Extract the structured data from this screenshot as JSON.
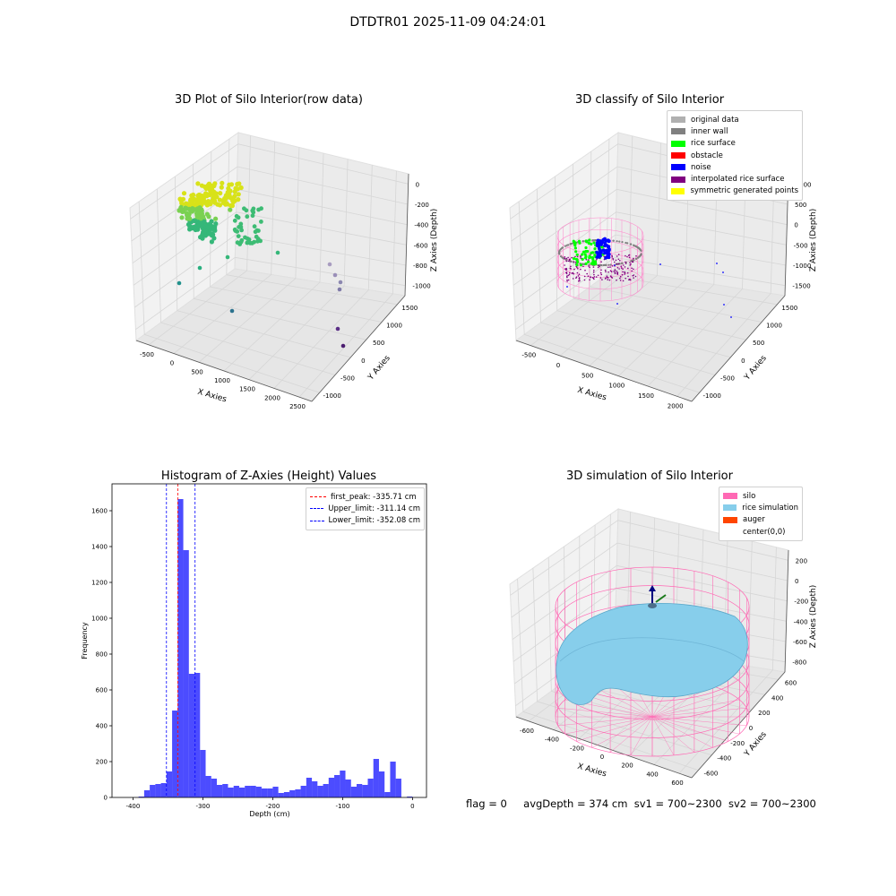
{
  "suptitle": "DTDTR01 2025-11-09 04:24:01",
  "panels": {
    "raw": {
      "title": "3D Plot of Silo Interior(row data)",
      "xlabel": "X Axies",
      "ylabel": "Y Axies",
      "zlabel": "Z Axies (Depth)",
      "xticks": [
        "-500",
        "0",
        "500",
        "1000",
        "1500",
        "2000",
        "2500"
      ],
      "yticks": [
        "-1000",
        "-500",
        "0",
        "500",
        "1000",
        "1500"
      ],
      "zticks": [
        "0",
        "-200",
        "-400",
        "-600",
        "-800",
        "-1000"
      ]
    },
    "classify": {
      "title": "3D classify of Silo Interior",
      "xlabel": "X Axies",
      "ylabel": "Y Axies",
      "zlabel": "Z Axies (Depth)",
      "xticks": [
        "-500",
        "0",
        "500",
        "1000",
        "1500",
        "2000"
      ],
      "yticks": [
        "-1000",
        "-500",
        "0",
        "500",
        "1000",
        "1500"
      ],
      "zticks": [
        "1000",
        "500",
        "0",
        "-500",
        "-1000",
        "-1500"
      ],
      "legend": [
        {
          "label": "original data",
          "color": "#b0b0b0"
        },
        {
          "label": "inner wall",
          "color": "#808080"
        },
        {
          "label": "rice surface",
          "color": "#00ff00"
        },
        {
          "label": "obstacle",
          "color": "#ff0000"
        },
        {
          "label": "noise",
          "color": "#0000ff"
        },
        {
          "label": "interpolated rice surface",
          "color": "#800080"
        },
        {
          "label": "symmetric generated points",
          "color": "#ffff00"
        }
      ]
    },
    "simulation": {
      "title": "3D simulation of Silo Interior",
      "xlabel": "X Axies",
      "ylabel": "Y Axies",
      "zlabel": "Z Axies (Depth)",
      "xticks": [
        "-600",
        "-400",
        "-200",
        "0",
        "200",
        "400",
        "600"
      ],
      "yticks": [
        "-600",
        "-400",
        "-200",
        "0",
        "200",
        "400",
        "600"
      ],
      "zticks": [
        "200",
        "0",
        "-200",
        "-400",
        "-600",
        "-800"
      ],
      "legend": [
        {
          "label": "silo",
          "color": "#ff69b4"
        },
        {
          "label": "rice simulation",
          "color": "#87ceeb"
        },
        {
          "label": "auger",
          "color": "#ff4500"
        },
        {
          "label": "center(0,0)",
          "color": ""
        }
      ]
    }
  },
  "chart_data": {
    "type": "bar",
    "title": "Histogram of Z-Axies (Height) Values",
    "xlabel": "Depth (cm)",
    "ylabel": "Frequency",
    "xlim": [
      -430,
      20
    ],
    "ylim": [
      0,
      1750
    ],
    "xticks": [
      -400,
      -300,
      -200,
      -100,
      0
    ],
    "yticks": [
      0,
      200,
      400,
      600,
      800,
      1000,
      1200,
      1400,
      1600
    ],
    "bar_color": "#0000ff",
    "bin_width": 8,
    "bins": [
      {
        "x": -392,
        "y": 5
      },
      {
        "x": -384,
        "y": 40
      },
      {
        "x": -376,
        "y": 70
      },
      {
        "x": -368,
        "y": 75
      },
      {
        "x": -360,
        "y": 80
      },
      {
        "x": -352,
        "y": 145
      },
      {
        "x": -344,
        "y": 485
      },
      {
        "x": -336,
        "y": 1665
      },
      {
        "x": -328,
        "y": 1380
      },
      {
        "x": -320,
        "y": 690
      },
      {
        "x": -312,
        "y": 695
      },
      {
        "x": -304,
        "y": 265
      },
      {
        "x": -296,
        "y": 120
      },
      {
        "x": -288,
        "y": 105
      },
      {
        "x": -280,
        "y": 70
      },
      {
        "x": -272,
        "y": 75
      },
      {
        "x": -264,
        "y": 55
      },
      {
        "x": -256,
        "y": 65
      },
      {
        "x": -248,
        "y": 55
      },
      {
        "x": -240,
        "y": 65
      },
      {
        "x": -232,
        "y": 65
      },
      {
        "x": -224,
        "y": 60
      },
      {
        "x": -216,
        "y": 50
      },
      {
        "x": -208,
        "y": 50
      },
      {
        "x": -200,
        "y": 60
      },
      {
        "x": -192,
        "y": 25
      },
      {
        "x": -184,
        "y": 30
      },
      {
        "x": -176,
        "y": 40
      },
      {
        "x": -168,
        "y": 45
      },
      {
        "x": -160,
        "y": 65
      },
      {
        "x": -152,
        "y": 110
      },
      {
        "x": -144,
        "y": 90
      },
      {
        "x": -136,
        "y": 65
      },
      {
        "x": -128,
        "y": 75
      },
      {
        "x": -120,
        "y": 110
      },
      {
        "x": -112,
        "y": 125
      },
      {
        "x": -104,
        "y": 150
      },
      {
        "x": -96,
        "y": 100
      },
      {
        "x": -88,
        "y": 60
      },
      {
        "x": -80,
        "y": 75
      },
      {
        "x": -72,
        "y": 70
      },
      {
        "x": -64,
        "y": 105
      },
      {
        "x": -56,
        "y": 215
      },
      {
        "x": -48,
        "y": 145
      },
      {
        "x": -40,
        "y": 30
      },
      {
        "x": -32,
        "y": 200
      },
      {
        "x": -24,
        "y": 105
      },
      {
        "x": -16,
        "y": 0
      },
      {
        "x": -8,
        "y": 5
      }
    ],
    "lines": [
      {
        "label": "first_peak: -335.71 cm",
        "value": -335.71,
        "color": "#ff0000"
      },
      {
        "label": "Upper_limit: -311.14 cm",
        "value": -311.14,
        "color": "#0000ff"
      },
      {
        "label": "Lower_limit: -352.08 cm",
        "value": -352.08,
        "color": "#0000ff"
      }
    ],
    "legend_position": "upper right"
  },
  "footer": {
    "flag": "flag = 0",
    "avg": "avgDepth = 374 cm",
    "sv1": "sv1 = 700~2300",
    "sv2": "sv2 = 700~2300"
  }
}
